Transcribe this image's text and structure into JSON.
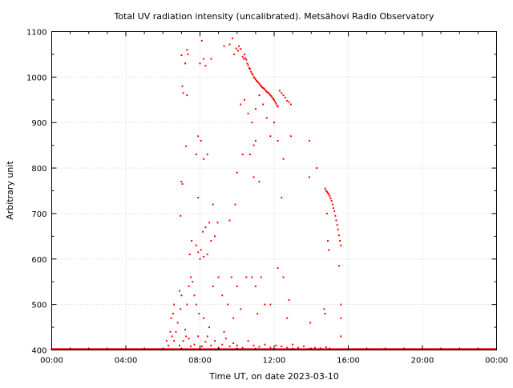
{
  "chart_data": {
    "type": "scatter",
    "title": "Total UV radiation intensity (uncalibrated). Metsähovi Radio Observatory",
    "xlabel": "Time UT, on date 2023-03-10",
    "ylabel": "Arbitrary unit",
    "xlim": [
      0,
      24
    ],
    "ylim": [
      400,
      1100
    ],
    "grid": true,
    "x_ticks": [
      {
        "value": 0,
        "label": "00:00"
      },
      {
        "value": 4,
        "label": "04:00"
      },
      {
        "value": 8,
        "label": "08:00"
      },
      {
        "value": 12,
        "label": "12:00"
      },
      {
        "value": 16,
        "label": "16:00"
      },
      {
        "value": 20,
        "label": "20:00"
      },
      {
        "value": 24,
        "label": "00:00"
      }
    ],
    "y_ticks": [
      {
        "value": 400,
        "label": "400"
      },
      {
        "value": 500,
        "label": "500"
      },
      {
        "value": 600,
        "label": "600"
      },
      {
        "value": 700,
        "label": "700"
      },
      {
        "value": 800,
        "label": "800"
      },
      {
        "value": 900,
        "label": "900"
      },
      {
        "value": 1000,
        "label": "1000"
      },
      {
        "value": 1100,
        "label": "1100"
      }
    ],
    "series": [
      {
        "color": "#ff0000",
        "x_unit": "hours UT",
        "points": [
          [
            7.0,
            1048
          ],
          [
            7.05,
            980
          ],
          [
            7.1,
            965
          ],
          [
            7.2,
            1030
          ],
          [
            7.3,
            1060
          ],
          [
            7.35,
            1050
          ],
          [
            7.25,
            848
          ],
          [
            8.0,
            1030
          ],
          [
            8.1,
            1080
          ],
          [
            8.2,
            1040
          ],
          [
            8.3,
            1025
          ],
          [
            8.6,
            1040
          ],
          [
            9.3,
            1068
          ],
          [
            9.6,
            1072
          ],
          [
            9.75,
            1085
          ],
          [
            9.85,
            1050
          ],
          [
            9.95,
            1063
          ],
          [
            10.05,
            1058
          ],
          [
            10.1,
            1068
          ],
          [
            10.2,
            1062
          ],
          [
            10.3,
            1045
          ],
          [
            10.35,
            1040
          ],
          [
            10.4,
            1050
          ],
          [
            10.45,
            1042
          ],
          [
            10.5,
            1038
          ],
          [
            10.55,
            1030
          ],
          [
            10.6,
            1026
          ],
          [
            10.65,
            1020
          ],
          [
            10.7,
            1018
          ],
          [
            10.75,
            1012
          ],
          [
            10.8,
            1008
          ],
          [
            10.85,
            1005
          ],
          [
            10.9,
            1000
          ],
          [
            10.95,
            998
          ],
          [
            11.0,
            995
          ],
          [
            11.05,
            992
          ],
          [
            11.1,
            990
          ],
          [
            11.15,
            988
          ],
          [
            11.2,
            985
          ],
          [
            11.25,
            982
          ],
          [
            11.3,
            980
          ],
          [
            11.35,
            978
          ],
          [
            11.4,
            976
          ],
          [
            11.45,
            975
          ],
          [
            11.5,
            973
          ],
          [
            11.55,
            970
          ],
          [
            11.6,
            968
          ],
          [
            11.65,
            966
          ],
          [
            11.7,
            965
          ],
          [
            11.75,
            963
          ],
          [
            11.8,
            960
          ],
          [
            11.85,
            958
          ],
          [
            11.9,
            955
          ],
          [
            11.95,
            952
          ],
          [
            12.0,
            950
          ],
          [
            12.05,
            946
          ],
          [
            12.1,
            942
          ],
          [
            12.15,
            938
          ],
          [
            12.2,
            935
          ],
          [
            12.3,
            970
          ],
          [
            12.4,
            965
          ],
          [
            12.5,
            960
          ],
          [
            12.6,
            955
          ],
          [
            12.7,
            948
          ],
          [
            12.8,
            945
          ],
          [
            12.9,
            940
          ],
          [
            10.2,
            940
          ],
          [
            10.4,
            950
          ],
          [
            10.6,
            920
          ],
          [
            10.8,
            900
          ],
          [
            11.0,
            930
          ],
          [
            11.2,
            960
          ],
          [
            11.4,
            940
          ],
          [
            11.6,
            910
          ],
          [
            11.8,
            870
          ],
          [
            12.0,
            900
          ],
          [
            12.2,
            860
          ],
          [
            12.5,
            820
          ],
          [
            12.9,
            870
          ],
          [
            11.0,
            860
          ],
          [
            10.9,
            850
          ],
          [
            10.7,
            830
          ],
          [
            10.3,
            830
          ],
          [
            10.0,
            790
          ],
          [
            12.4,
            735
          ],
          [
            11.2,
            770
          ],
          [
            10.9,
            780
          ],
          [
            7.3,
            960
          ],
          [
            7.9,
            870
          ],
          [
            8.05,
            860
          ],
          [
            8.2,
            820
          ],
          [
            7.8,
            830
          ],
          [
            8.4,
            830
          ],
          [
            7.9,
            735
          ],
          [
            8.7,
            720
          ],
          [
            8.95,
            680
          ],
          [
            8.5,
            680
          ],
          [
            8.3,
            670
          ],
          [
            8.8,
            650
          ],
          [
            8.15,
            660
          ],
          [
            8.6,
            640
          ],
          [
            8.05,
            620
          ],
          [
            7.45,
            610
          ],
          [
            8.2,
            605
          ],
          [
            8.0,
            600
          ],
          [
            7.05,
            765
          ],
          [
            7.0,
            770
          ],
          [
            6.95,
            695
          ],
          [
            7.55,
            640
          ],
          [
            7.8,
            630
          ],
          [
            7.9,
            615
          ],
          [
            8.4,
            610
          ],
          [
            9.6,
            685
          ],
          [
            9.9,
            720
          ],
          [
            13.9,
            860
          ],
          [
            14.3,
            800
          ],
          [
            13.9,
            780
          ],
          [
            14.75,
            755
          ],
          [
            14.8,
            750
          ],
          [
            14.85,
            748
          ],
          [
            14.9,
            745
          ],
          [
            14.95,
            742
          ],
          [
            15.0,
            738
          ],
          [
            15.05,
            733
          ],
          [
            15.1,
            728
          ],
          [
            15.15,
            720
          ],
          [
            15.2,
            712
          ],
          [
            15.25,
            705
          ],
          [
            15.3,
            695
          ],
          [
            15.35,
            685
          ],
          [
            15.4,
            675
          ],
          [
            15.45,
            665
          ],
          [
            15.5,
            652
          ],
          [
            15.55,
            640
          ],
          [
            15.6,
            630
          ],
          [
            14.85,
            700
          ],
          [
            14.9,
            640
          ],
          [
            14.95,
            620
          ],
          [
            15.5,
            585
          ],
          [
            15.6,
            500
          ],
          [
            15.6,
            470
          ],
          [
            14.7,
            490
          ],
          [
            14.75,
            480
          ],
          [
            13.95,
            460
          ],
          [
            15.6,
            430
          ],
          [
            6.9,
            530
          ],
          [
            7.0,
            520
          ],
          [
            6.95,
            490
          ],
          [
            7.3,
            500
          ],
          [
            7.4,
            540
          ],
          [
            7.5,
            560
          ],
          [
            7.6,
            550
          ],
          [
            7.7,
            520
          ],
          [
            7.8,
            500
          ],
          [
            7.95,
            480
          ],
          [
            8.2,
            470
          ],
          [
            8.5,
            450
          ],
          [
            8.7,
            540
          ],
          [
            9.0,
            560
          ],
          [
            9.2,
            520
          ],
          [
            9.5,
            500
          ],
          [
            9.7,
            560
          ],
          [
            10.0,
            540
          ],
          [
            10.2,
            490
          ],
          [
            10.5,
            560
          ],
          [
            10.8,
            560
          ],
          [
            11.0,
            540
          ],
          [
            11.3,
            560
          ],
          [
            11.5,
            500
          ],
          [
            11.8,
            500
          ],
          [
            12.2,
            580
          ],
          [
            12.5,
            560
          ],
          [
            12.8,
            510
          ],
          [
            12.7,
            470
          ],
          [
            11.1,
            480
          ],
          [
            9.8,
            470
          ],
          [
            9.3,
            440
          ],
          [
            8.4,
            430
          ],
          [
            7.25,
            430
          ],
          [
            6.6,
            420
          ],
          [
            6.7,
            440
          ],
          [
            6.8,
            460
          ],
          [
            6.9,
            410
          ],
          [
            7.1,
            420
          ],
          [
            7.2,
            445
          ],
          [
            7.4,
            425
          ],
          [
            7.5,
            408
          ],
          [
            7.7,
            412
          ],
          [
            7.9,
            430
          ],
          [
            8.1,
            408
          ],
          [
            8.3,
            418
          ],
          [
            8.6,
            410
          ],
          [
            8.8,
            420
          ],
          [
            9.0,
            405
          ],
          [
            9.2,
            412
          ],
          [
            9.4,
            425
          ],
          [
            9.6,
            408
          ],
          [
            9.8,
            415
          ],
          [
            10.0,
            410
          ],
          [
            10.3,
            405
          ],
          [
            10.6,
            420
          ],
          [
            10.9,
            410
          ],
          [
            11.2,
            407
          ],
          [
            11.5,
            412
          ],
          [
            11.8,
            405
          ],
          [
            12.1,
            410
          ],
          [
            12.4,
            408
          ],
          [
            12.7,
            405
          ],
          [
            13.0,
            412
          ],
          [
            13.3,
            405
          ],
          [
            13.6,
            408
          ],
          [
            13.9,
            403
          ],
          [
            14.2,
            405
          ],
          [
            14.5,
            404
          ],
          [
            14.8,
            406
          ],
          [
            6.3,
            410
          ],
          [
            6.2,
            420
          ],
          [
            6.4,
            440
          ],
          [
            6.5,
            430
          ],
          [
            6.45,
            470
          ],
          [
            6.55,
            480
          ],
          [
            6.6,
            500
          ]
        ],
        "baseline": {
          "value": 402,
          "from_hours": 0,
          "to_hours": 24
        }
      }
    ]
  }
}
